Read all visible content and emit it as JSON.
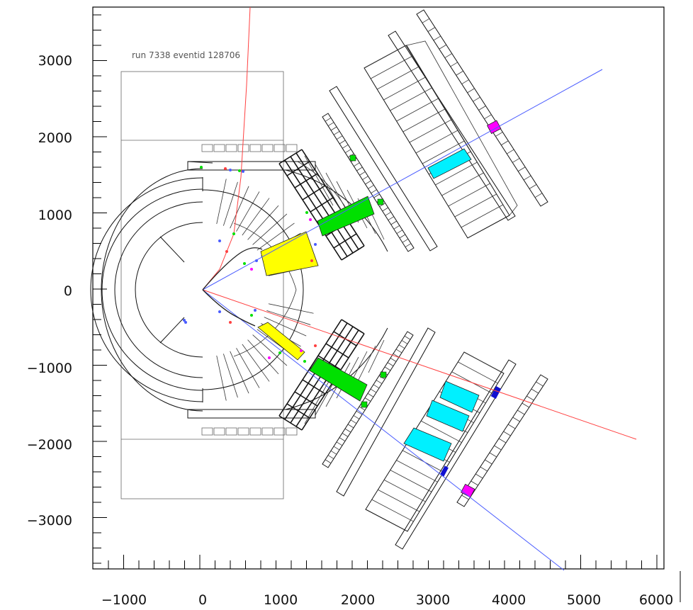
{
  "run_label": "run 7338 eventid 128706",
  "axes": {
    "x_ticks": [
      "−1000",
      "0",
      "1000",
      "2000",
      "3000",
      "4000",
      "5000",
      "6000"
    ],
    "y_ticks": [
      "3000",
      "2000",
      "1000",
      "0",
      "−1000",
      "−2000",
      "−3000"
    ]
  },
  "colors": {
    "track_red": "#ff4040",
    "track_blue": "#4a5cff",
    "cell_yellow": "#ffff00",
    "cell_green": "#00e000",
    "cell_cyan": "#00f0ff",
    "cell_magenta": "#ff00ff",
    "hit_blue": "#1010d0"
  }
}
